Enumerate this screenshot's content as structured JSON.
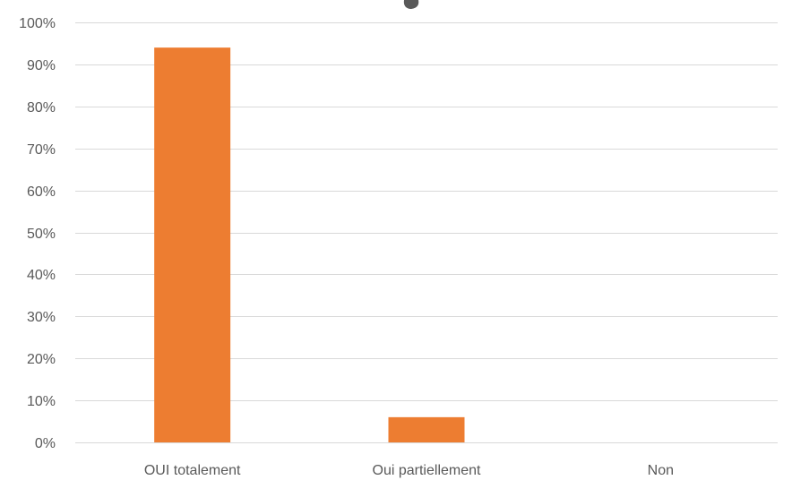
{
  "chart_data": {
    "type": "bar",
    "categories": [
      "OUI totalement",
      "Oui partiellement",
      "Non"
    ],
    "values": [
      94,
      6,
      0
    ],
    "ylim": [
      0,
      100
    ],
    "yticks": [
      0,
      10,
      20,
      30,
      40,
      50,
      60,
      70,
      80,
      90,
      100
    ],
    "ytick_format": "%",
    "grid": true,
    "legend": "none",
    "colors": {
      "bar": "#ED7D31",
      "grid": "#D9D9D9",
      "text": "#595959"
    }
  }
}
